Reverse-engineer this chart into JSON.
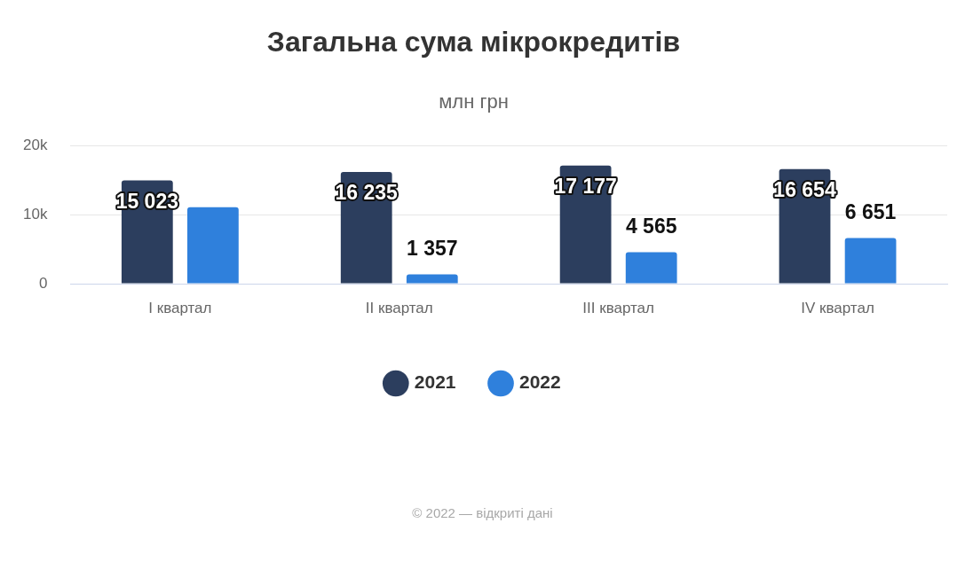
{
  "chart_data": {
    "type": "bar",
    "title": "Загальна сума мікрокредитів",
    "subtitle": "млн грн",
    "categories": [
      "I квартал",
      "II квартал",
      "III квартал",
      "IV квартал"
    ],
    "series": [
      {
        "name": "2021",
        "color": "#2c3e5e",
        "values": [
          15023,
          16235,
          17177,
          16654
        ],
        "value_labels": [
          "15 023",
          "16 235",
          "17 177",
          "16 654"
        ]
      },
      {
        "name": "2022",
        "color": "#2f80dc",
        "values": [
          11100,
          1357,
          4565,
          6651
        ],
        "value_labels": [
          null,
          "1 357",
          "4 565",
          "6 651"
        ]
      }
    ],
    "ylim": [
      0,
      20000
    ],
    "yticks": [
      0,
      {
        "value": 10000,
        "label": "10k"
      },
      {
        "value": 20000,
        "label": "20k"
      }
    ],
    "grid": "y",
    "legend": "bottom",
    "annotations": [
      "© 2022 — відкриті дані"
    ]
  }
}
